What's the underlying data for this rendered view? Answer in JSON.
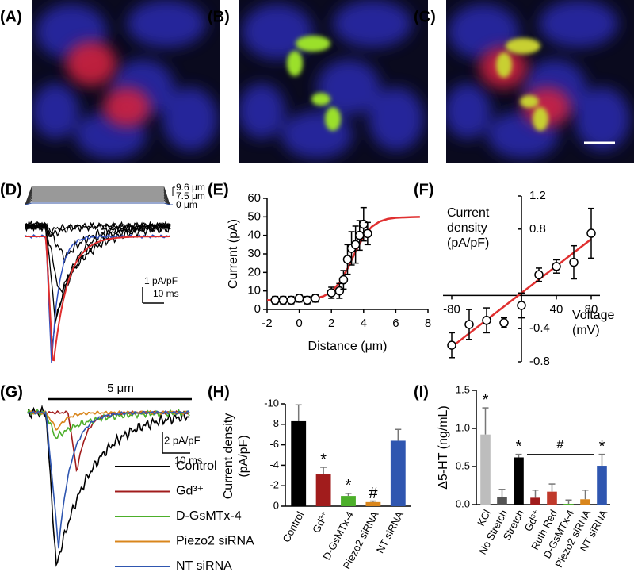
{
  "panel_labels": [
    "(A)",
    "(B)",
    "(C)",
    "(D)",
    "(E)",
    "(F)",
    "(G)",
    "(H)",
    "(I)"
  ],
  "panel_d": {
    "stimulus_labels": [
      "9.6 μm",
      "7.5 μm",
      "0 μm"
    ],
    "scale_y": "1 pA/pF",
    "scale_x": "10 ms"
  },
  "panel_g": {
    "stimulus_label": "5 μm",
    "scale_y": "2 pA/pF",
    "scale_x": "10 ms",
    "series": [
      {
        "name": "Control",
        "color": "#000000"
      },
      {
        "name": "Gd³⁺",
        "color": "#a11c1c"
      },
      {
        "name": "D-GsMTx-4",
        "color": "#4caf2a"
      },
      {
        "name": "Piezo2 siRNA",
        "color": "#d9861c"
      },
      {
        "name": "NT siRNA",
        "color": "#2f56b0"
      }
    ]
  },
  "chart_data": [
    {
      "type": "scatter",
      "x_label": "Distance (μm)",
      "y_label": "Current (pA)",
      "xlim": [
        -2,
        8
      ],
      "ylim": [
        0,
        60
      ],
      "xticks": [
        -2,
        0,
        2,
        4,
        6,
        8
      ],
      "yticks": [
        0,
        10,
        20,
        30,
        40,
        50,
        60
      ],
      "series": [
        {
          "x": [
            -1.5,
            -1,
            -0.5,
            0,
            0.5,
            1,
            2,
            2.5,
            2.75,
            3,
            3.25,
            3.5,
            3.75,
            4,
            4.25
          ],
          "values": [
            5,
            5,
            5,
            6,
            5,
            6,
            9,
            10,
            16,
            27,
            33,
            35,
            40,
            46,
            41
          ],
          "errors": [
            2,
            2,
            2,
            2,
            2,
            2,
            3,
            4,
            5,
            8,
            9,
            10,
            8,
            9,
            6
          ],
          "color": "#000000"
        },
        {
          "x": [
            -2,
            -1,
            0,
            1,
            1.5,
            2,
            2.5,
            3,
            3.5,
            4,
            4.5,
            5,
            5.5,
            6,
            7,
            7.5
          ],
          "values": [
            5,
            5.1,
            5.2,
            6,
            7.1,
            9.6,
            14.4,
            22,
            31.2,
            39.4,
            44.6,
            47.5,
            48.9,
            49.5,
            49.9,
            50
          ],
          "color": "#e03030",
          "style": "line"
        }
      ]
    },
    {
      "type": "scatter",
      "x_label": "Voltage (mV)",
      "y_label": "Current density (pA/pF)",
      "xlim": [
        -90,
        90
      ],
      "ylim": [
        -0.8,
        1.2
      ],
      "xticks": [
        -80,
        40,
        80
      ],
      "yticks": [
        -0.8,
        -0.4,
        0.8,
        1.2
      ],
      "series": [
        {
          "x": [
            -80,
            -60,
            -40,
            -20,
            0,
            20,
            40,
            60,
            80
          ],
          "values": [
            -0.6,
            -0.35,
            -0.3,
            -0.33,
            -0.12,
            0.25,
            0.35,
            0.4,
            0.75
          ],
          "errors": [
            0.15,
            0.18,
            0.15,
            0.06,
            0.15,
            0.08,
            0.08,
            0.2,
            0.3
          ],
          "color": "#000000"
        },
        {
          "x": [
            -80,
            80
          ],
          "values": [
            -0.62,
            0.68
          ],
          "color": "#e03030",
          "style": "line"
        }
      ]
    },
    {
      "type": "bar",
      "y_label": "Current density (pA/pF)",
      "categories": [
        "Control",
        "Gd³⁺",
        "D-GsMTx-4",
        "Piezo2 siRNA",
        "NT siRNA"
      ],
      "values": [
        -8.3,
        -3.1,
        -1.0,
        -0.4,
        -6.4
      ],
      "errors": [
        1.6,
        0.7,
        0.25,
        0.1,
        1.1
      ],
      "colors": [
        "#000000",
        "#a11c1c",
        "#4caf2a",
        "#d9861c",
        "#2f56b0"
      ],
      "markers": [
        null,
        "*",
        "*",
        "#",
        null
      ],
      "ylim": [
        0,
        -10
      ],
      "yticks": [
        -10,
        -8,
        -6,
        -4,
        -2,
        0
      ]
    },
    {
      "type": "bar",
      "y_label": "Δ5-HT (ng/mL)",
      "categories": [
        "KCl",
        "No Stretch",
        "Stretch",
        "Gd³⁺",
        "Ruth Red",
        "D-GsMTx-4",
        "Piezo2 siRNA",
        "NT siRNA"
      ],
      "values": [
        0.92,
        0.1,
        0.62,
        0.09,
        0.17,
        0.01,
        0.07,
        0.51
      ],
      "errors": [
        0.35,
        0.1,
        0.04,
        0.1,
        0.1,
        0.05,
        0.12,
        0.15
      ],
      "colors": [
        "#bdbdbd",
        "#555555",
        "#000000",
        "#a11c1c",
        "#c0392b",
        "#4caf2a",
        "#d9861c",
        "#2f56b0"
      ],
      "markers": [
        "*",
        null,
        "*",
        null,
        null,
        null,
        null,
        "*"
      ],
      "bracket_label": "#",
      "ylim": [
        0,
        1.5
      ],
      "yticks": [
        {
          "value": 0,
          "label": "0.0"
        },
        {
          "value": 0.5,
          "label": "0.5"
        },
        {
          "value": 1,
          "label": "1.0"
        },
        {
          "value": 1.5,
          "label": "1.5"
        }
      ]
    }
  ]
}
